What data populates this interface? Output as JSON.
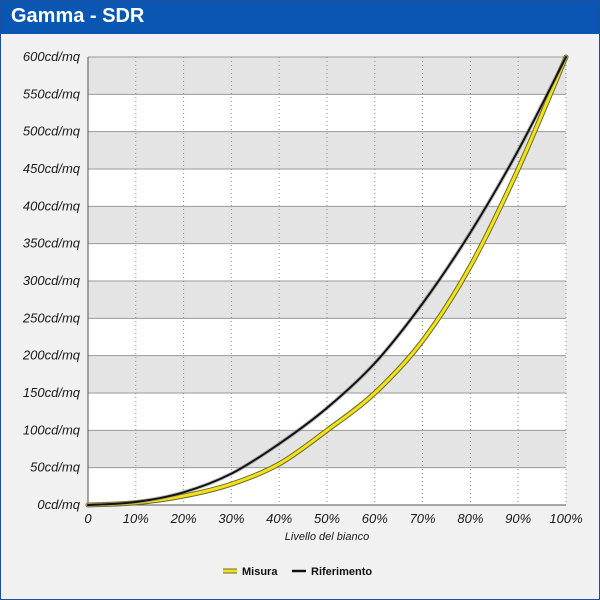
{
  "window": {
    "title": "Gamma - SDR"
  },
  "chart_data": {
    "type": "line",
    "title": "Gamma - SDR",
    "xlabel": "Livello del bianco",
    "ylabel": "",
    "xlim": [
      0,
      100
    ],
    "ylim": [
      0,
      600
    ],
    "x_ticks": [
      0,
      10,
      20,
      30,
      40,
      50,
      60,
      70,
      80,
      90,
      100
    ],
    "x_tick_labels": [
      "0",
      "10%",
      "20%",
      "30%",
      "40%",
      "50%",
      "60%",
      "70%",
      "80%",
      "90%",
      "100%"
    ],
    "y_ticks": [
      0,
      50,
      100,
      150,
      200,
      250,
      300,
      350,
      400,
      450,
      500,
      550,
      600
    ],
    "y_tick_labels": [
      "0cd/mq",
      "50cd/mq",
      "100cd/mq",
      "150cd/mq",
      "200cd/mq",
      "250cd/mq",
      "300cd/mq",
      "350cd/mq",
      "400cd/mq",
      "450cd/mq",
      "500cd/mq",
      "550cd/mq",
      "600cd/mq"
    ],
    "grid": {
      "vertical": "dotted",
      "horizontal": "bands"
    },
    "legend_position": "bottom-center",
    "series": [
      {
        "name": "Misura",
        "color": "#f2e21c",
        "x": [
          0,
          10,
          20,
          30,
          40,
          50,
          60,
          70,
          80,
          90,
          100
        ],
        "values": [
          0,
          3,
          12,
          28,
          55,
          100,
          150,
          220,
          320,
          450,
          600
        ]
      },
      {
        "name": "Riferimento",
        "color": "#111111",
        "x": [
          0,
          10,
          20,
          30,
          40,
          50,
          60,
          70,
          80,
          90,
          100
        ],
        "values": [
          0,
          4,
          17,
          42,
          82,
          130,
          190,
          270,
          365,
          475,
          600
        ]
      }
    ]
  }
}
